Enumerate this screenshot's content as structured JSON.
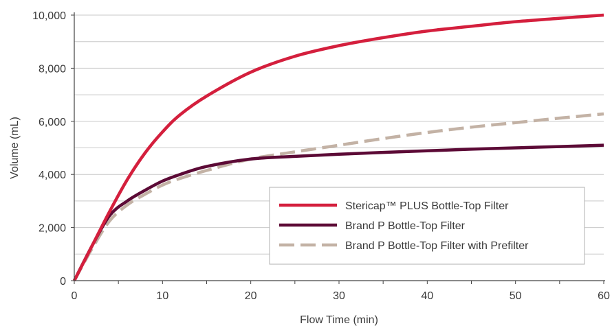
{
  "chart_data": {
    "type": "line",
    "title": "",
    "xlabel": "Flow Time (min)",
    "ylabel": "Volume (mL)",
    "xlim": [
      0,
      60
    ],
    "ylim": [
      0,
      10000
    ],
    "x_ticks": [
      0,
      10,
      20,
      30,
      40,
      50,
      60
    ],
    "x_tick_labels": [
      "0",
      "10",
      "20",
      "30",
      "40",
      "50",
      "60"
    ],
    "y_ticks": [
      0,
      2000,
      4000,
      6000,
      8000,
      10000
    ],
    "y_tick_labels": [
      "0",
      "2,000",
      "4,000",
      "6,000",
      "8,000",
      "10,000"
    ],
    "grid": "horizontal",
    "legend_position": "bottom-right",
    "series": [
      {
        "name": "Stericap™ PLUS Bottle-Top Filter",
        "color": "#d41f3d",
        "style": "solid",
        "x": [
          0,
          2,
          4,
          6,
          8,
          10,
          12,
          15,
          20,
          25,
          30,
          35,
          40,
          45,
          50,
          55,
          60
        ],
        "y": [
          0,
          1300,
          2600,
          3800,
          4800,
          5600,
          6250,
          6950,
          7850,
          8450,
          8850,
          9150,
          9400,
          9580,
          9750,
          9880,
          10000
        ]
      },
      {
        "name": "Brand P Bottle-Top Filter",
        "color": "#5c0a36",
        "style": "solid",
        "x": [
          0,
          2,
          4,
          6,
          8,
          10,
          12,
          15,
          20,
          25,
          30,
          35,
          40,
          45,
          50,
          55,
          60
        ],
        "y": [
          0,
          1300,
          2450,
          3000,
          3400,
          3750,
          4000,
          4300,
          4580,
          4680,
          4760,
          4830,
          4890,
          4950,
          5000,
          5050,
          5100
        ]
      },
      {
        "name": "Brand P Bottle-Top Filter with Prefilter",
        "color": "#c3b2a5",
        "style": "dashed",
        "x": [
          0,
          2,
          4,
          6,
          8,
          10,
          12,
          15,
          20,
          25,
          30,
          35,
          40,
          45,
          50,
          55,
          60
        ],
        "y": [
          0,
          1200,
          2250,
          2850,
          3250,
          3600,
          3850,
          4150,
          4580,
          4850,
          5100,
          5350,
          5580,
          5780,
          5950,
          6120,
          6280
        ]
      }
    ]
  }
}
